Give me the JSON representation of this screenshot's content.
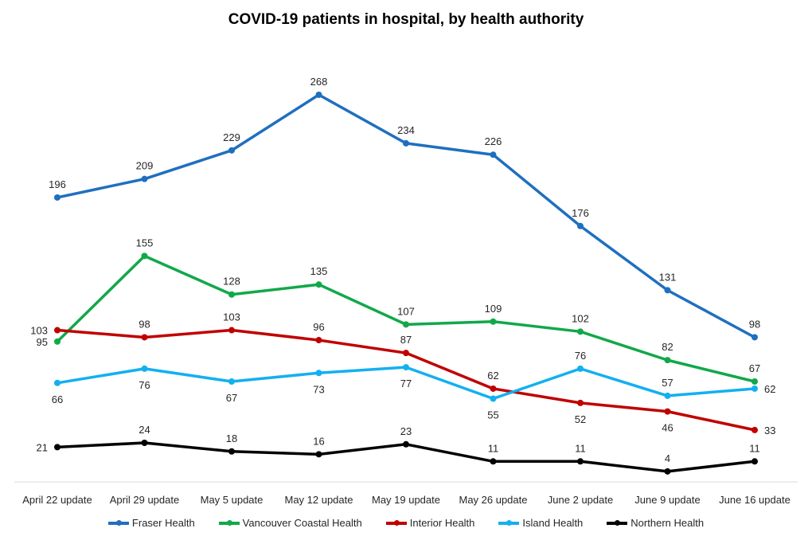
{
  "chart_data": {
    "type": "line",
    "title": "COVID-19 patients in hospital, by health authority",
    "xlabel": "",
    "ylabel": "",
    "categories": [
      "April 22 update",
      "April 29 update",
      "May 5 update",
      "May 12 update",
      "May 19 update",
      "May 26 update",
      "June 2 update",
      "June 9 update",
      "June 16 update"
    ],
    "ylim": [
      0,
      280
    ],
    "grid": false,
    "legend_position": "bottom",
    "series": [
      {
        "name": "Fraser Health",
        "color": "#1f6fbf",
        "values": [
          196,
          209,
          229,
          268,
          234,
          226,
          176,
          131,
          98
        ],
        "label_pos": [
          "above",
          "above",
          "above",
          "above",
          "above",
          "above",
          "above",
          "above",
          "above"
        ]
      },
      {
        "name": "Vancouver Coastal Health",
        "color": "#12a84a",
        "values": [
          95,
          155,
          128,
          135,
          107,
          109,
          102,
          82,
          67
        ],
        "label_pos": [
          "left",
          "above",
          "above",
          "above",
          "above",
          "above",
          "above",
          "above",
          "above"
        ]
      },
      {
        "name": "Interior Health",
        "color": "#c00000",
        "values": [
          103,
          98,
          103,
          96,
          87,
          62,
          52,
          46,
          33
        ],
        "label_pos": [
          "left",
          "above",
          "above",
          "above",
          "above",
          "above",
          "below",
          "below",
          "right"
        ]
      },
      {
        "name": "Island Health",
        "color": "#13b0f0",
        "values": [
          66,
          76,
          67,
          73,
          77,
          55,
          76,
          57,
          62
        ],
        "label_pos": [
          "below",
          "below",
          "below",
          "below",
          "below",
          "below",
          "above",
          "above",
          "right"
        ]
      },
      {
        "name": "Northern Health",
        "color": "#000000",
        "values": [
          21,
          24,
          18,
          16,
          23,
          11,
          11,
          4,
          11
        ],
        "label_pos": [
          "left",
          "above",
          "above",
          "above",
          "above",
          "above",
          "above",
          "above",
          "above"
        ]
      }
    ]
  }
}
